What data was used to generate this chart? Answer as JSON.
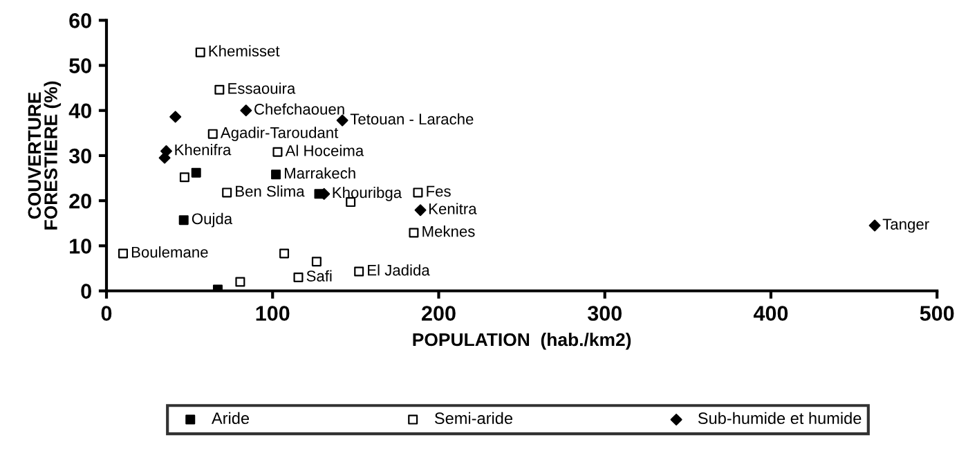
{
  "chart_data": {
    "type": "scatter",
    "xlabel": "POPULATION  (hab./km2)",
    "ylabel": "COUVERTURE\nFORESTIERE (%)",
    "xlim": [
      0,
      500
    ],
    "xticks": [
      0,
      100,
      200,
      300,
      400,
      500
    ],
    "ylim": [
      0,
      60
    ],
    "yticks": [
      0,
      10,
      20,
      30,
      40,
      50,
      60
    ],
    "grid": false,
    "legend": "bottom",
    "series": [
      {
        "name": "Aride",
        "color": "#000000",
        "marker": "square",
        "x": [
          54,
          102,
          128,
          46.5,
          67
        ],
        "values": [
          26.2,
          25.8,
          21.5,
          15.7,
          0.3
        ]
      },
      {
        "name": "Semi-aride",
        "color": "#ffffff",
        "marker": "square",
        "x": [
          56.5,
          68,
          64,
          103,
          47,
          72.5,
          147,
          187.5,
          185,
          10,
          107,
          126.5,
          115.5,
          152,
          80.5
        ],
        "values": [
          52.9,
          44.6,
          34.8,
          30.8,
          25.2,
          21.8,
          19.7,
          21.8,
          12.9,
          8.3,
          8.3,
          6.5,
          3.0,
          4.3,
          2.0
        ]
      },
      {
        "name": "Sub-humide et humide",
        "color": "#000000",
        "marker": "diamond",
        "x": [
          41.5,
          84,
          142,
          36,
          35,
          131,
          189,
          462.5
        ],
        "values": [
          38.6,
          40,
          37.8,
          31,
          29.5,
          21.5,
          17.9,
          14.5
        ]
      }
    ],
    "annotations": [
      {
        "text": "Khemisset",
        "x": 56.5,
        "y": 52.9
      },
      {
        "text": "Essaouira",
        "x": 68,
        "y": 44.6
      },
      {
        "text": "Chefchaouen",
        "x": 84,
        "y": 40
      },
      {
        "text": "Tetouan - Larache",
        "x": 142,
        "y": 37.8
      },
      {
        "text": "Agadir-Taroudant",
        "x": 64,
        "y": 34.8
      },
      {
        "text": "Khenifra",
        "x": 36,
        "y": 31
      },
      {
        "text": "Al Hoceima",
        "x": 103,
        "y": 30.8
      },
      {
        "text": "Marrakech",
        "x": 102,
        "y": 25.8
      },
      {
        "text": "Ben Slima",
        "x": 72.5,
        "y": 21.8
      },
      {
        "text": "Khouribga",
        "x": 131,
        "y": 21.5
      },
      {
        "text": "Fes",
        "x": 187.5,
        "y": 21.8
      },
      {
        "text": "Kenitra",
        "x": 189,
        "y": 17.9
      },
      {
        "text": "Oujda",
        "x": 46.5,
        "y": 15.7
      },
      {
        "text": "Meknes",
        "x": 185,
        "y": 12.9
      },
      {
        "text": "Tanger",
        "x": 462.5,
        "y": 14.5
      },
      {
        "text": "Boulemane",
        "x": 10,
        "y": 8.3
      },
      {
        "text": "Safi",
        "x": 115.5,
        "y": 3.0
      },
      {
        "text": "El Jadida",
        "x": 152,
        "y": 4.3
      }
    ]
  }
}
